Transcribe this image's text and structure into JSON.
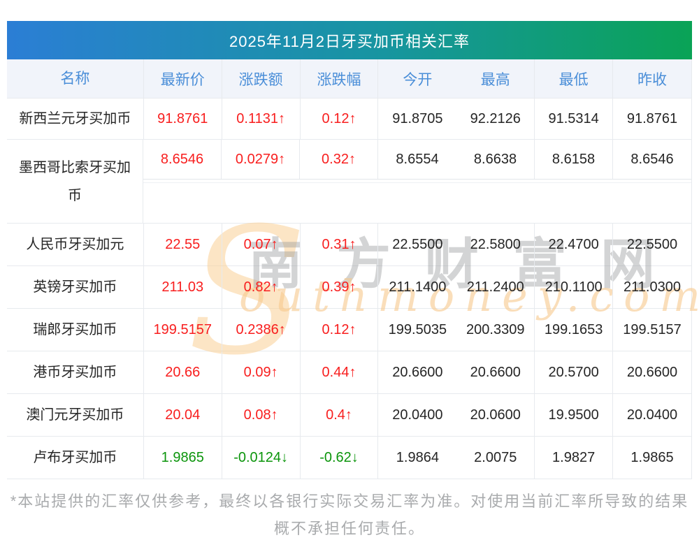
{
  "page": {
    "title": "2025年11月2日牙买加币相关汇率",
    "footnote_line1": "*本站提供的汇率仅供参考，最终以各银行实际交易汇率为准。对使用当前汇率所导致的结果",
    "footnote_line2": "概不承担任何责任。"
  },
  "watermark": {
    "initial": "S",
    "cn_text": "南方财富网",
    "en_text": "outhmoney.com"
  },
  "colors": {
    "up_red": "#f81e1e",
    "down_green": "#0c950c",
    "header_text_blue": "#4a8ed8",
    "title_gradient_left": "#2b7ed5",
    "title_gradient_right": "#0aa356",
    "header_row_bg": "#f1f4fa",
    "border": "#e7eaee",
    "footnote_gray": "#a9abad"
  },
  "table": {
    "columns": [
      "名称",
      "最新价",
      "涨跌额",
      "涨跌幅",
      "今开",
      "最高",
      "最低",
      "昨收"
    ],
    "rows": [
      {
        "name": "新西兰元牙买加币",
        "latest": "91.8761",
        "change": "0.1131↑",
        "pct": "0.12↑",
        "open": "91.8705",
        "high": "92.2126",
        "low": "91.5314",
        "prev": "91.8761",
        "dir": "up",
        "tall": false
      },
      {
        "name": "墨西哥比索牙买加币",
        "latest": "8.6546",
        "change": "0.0279↑",
        "pct": "0.32↑",
        "open": "8.6554",
        "high": "8.6638",
        "low": "8.6158",
        "prev": "8.6546",
        "dir": "up",
        "tall": true
      },
      {
        "name": "人民币牙买加元",
        "latest": "22.55",
        "change": "0.07↑",
        "pct": "0.31↑",
        "open": "22.5500",
        "high": "22.5800",
        "low": "22.4700",
        "prev": "22.5500",
        "dir": "up",
        "tall": false
      },
      {
        "name": "英镑牙买加币",
        "latest": "211.03",
        "change": "0.82↑",
        "pct": "0.39↑",
        "open": "211.1400",
        "high": "211.2400",
        "low": "210.1100",
        "prev": "211.0300",
        "dir": "up",
        "tall": false
      },
      {
        "name": "瑞郎牙买加币",
        "latest": "199.5157",
        "change": "0.2386↑",
        "pct": "0.12↑",
        "open": "199.5035",
        "high": "200.3309",
        "low": "199.1653",
        "prev": "199.5157",
        "dir": "up",
        "tall": false
      },
      {
        "name": "港币牙买加币",
        "latest": "20.66",
        "change": "0.09↑",
        "pct": "0.44↑",
        "open": "20.6600",
        "high": "20.6600",
        "low": "20.5700",
        "prev": "20.6600",
        "dir": "up",
        "tall": false
      },
      {
        "name": "澳门元牙买加币",
        "latest": "20.04",
        "change": "0.08↑",
        "pct": "0.4↑",
        "open": "20.0400",
        "high": "20.0600",
        "low": "19.9500",
        "prev": "20.0400",
        "dir": "up",
        "tall": false
      },
      {
        "name": "卢布牙买加币",
        "latest": "1.9865",
        "change": "-0.0124↓",
        "pct": "-0.62↓",
        "open": "1.9864",
        "high": "2.0075",
        "low": "1.9827",
        "prev": "1.9865",
        "dir": "down",
        "tall": false
      }
    ]
  }
}
